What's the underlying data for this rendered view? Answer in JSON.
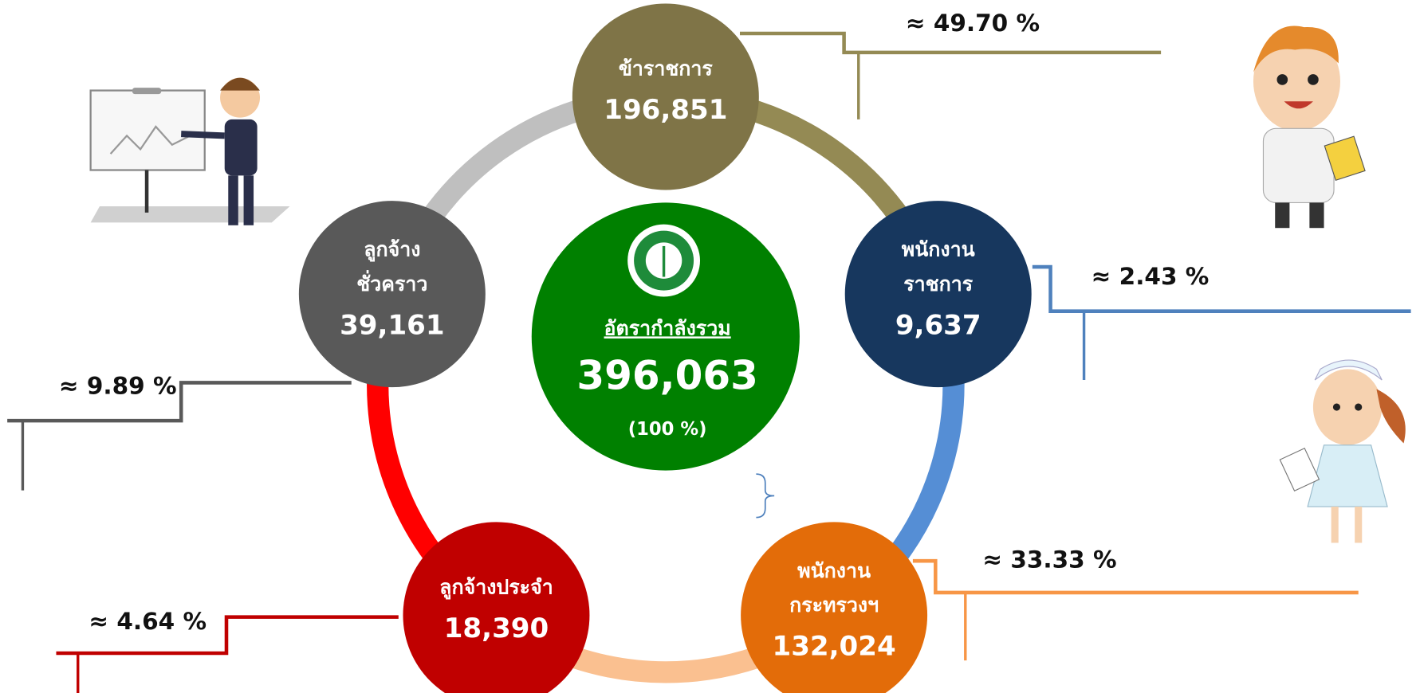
{
  "center": {
    "title": "อัตรากำลังรวม",
    "total": "396,063",
    "percent": "(100 %)"
  },
  "nodes": [
    {
      "label": [
        "ข้าราชการ"
      ],
      "value": "196,851",
      "percent": "≈ 49.70 %"
    },
    {
      "label": [
        "พนักงาน",
        "ราชการ"
      ],
      "value": "9,637",
      "percent": "≈ 2.43 %"
    },
    {
      "label": [
        "พนักงาน",
        "กระทรวงฯ"
      ],
      "value": "132,024",
      "percent": "≈ 33.33 %"
    },
    {
      "label": [
        "ลูกจ้างประจำ"
      ],
      "value": "18,390",
      "percent": "≈ 4.64 %"
    },
    {
      "label": [
        "ลูกจ้าง",
        "ชั่วคราว"
      ],
      "value": "39,161",
      "percent": "≈ 9.89 %"
    }
  ]
}
